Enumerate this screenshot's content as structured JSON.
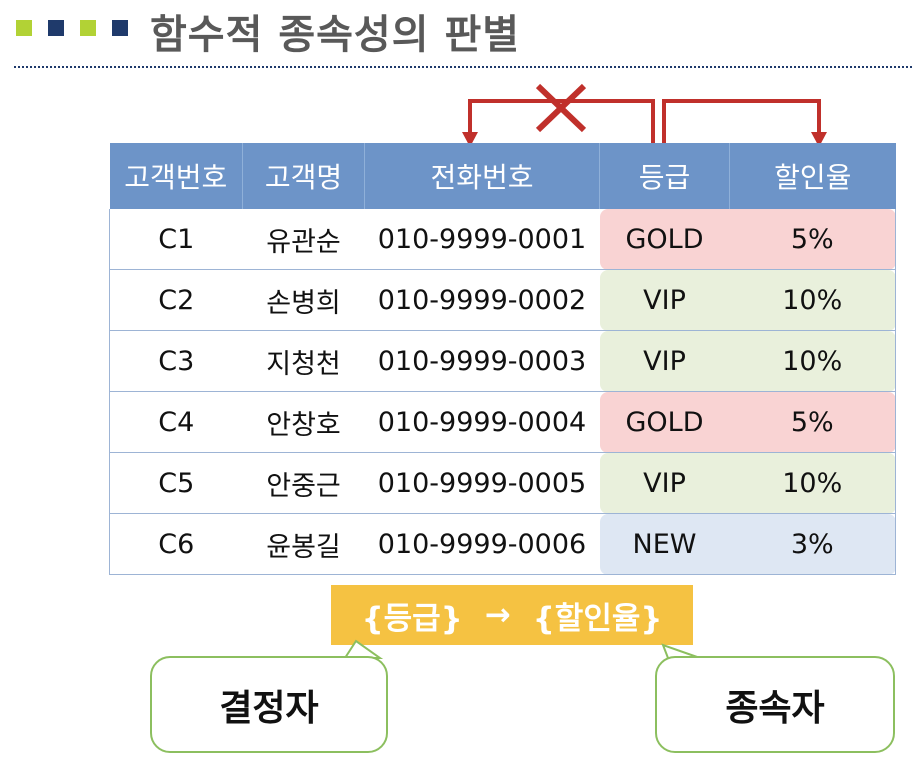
{
  "header": {
    "title": "함수적 종속성의 판별",
    "bullet_colors": [
      "#b2d235",
      "#1f3a6b",
      "#b2d235",
      "#1f3a6b"
    ]
  },
  "table": {
    "columns": [
      "고객번호",
      "고객명",
      "전화번호",
      "등급",
      "할인율"
    ],
    "rows": [
      {
        "id": "C1",
        "name": "유관순",
        "phone": "010-9999-0001",
        "grade": "GOLD",
        "discount": "5%"
      },
      {
        "id": "C2",
        "name": "손병희",
        "phone": "010-9999-0002",
        "grade": "VIP",
        "discount": "10%"
      },
      {
        "id": "C3",
        "name": "지청천",
        "phone": "010-9999-0003",
        "grade": "VIP",
        "discount": "10%"
      },
      {
        "id": "C4",
        "name": "안창호",
        "phone": "010-9999-0004",
        "grade": "GOLD",
        "discount": "5%"
      },
      {
        "id": "C5",
        "name": "안중근",
        "phone": "010-9999-0005",
        "grade": "VIP",
        "discount": "10%"
      },
      {
        "id": "C6",
        "name": "윤봉길",
        "phone": "010-9999-0006",
        "grade": "NEW",
        "discount": "3%"
      }
    ],
    "grade_colors": {
      "GOLD": "#f9d3d3",
      "VIP": "#e9f0dc",
      "NEW": "#dee7f3"
    },
    "header_color": "#6d94c8"
  },
  "dependency": {
    "determinant": "{등급}",
    "arrow": "→",
    "dependent": "{할인율}",
    "arrow_color": "#c0302b"
  },
  "callouts": {
    "determinant_label": "결정자",
    "dependent_label": "종속자"
  }
}
